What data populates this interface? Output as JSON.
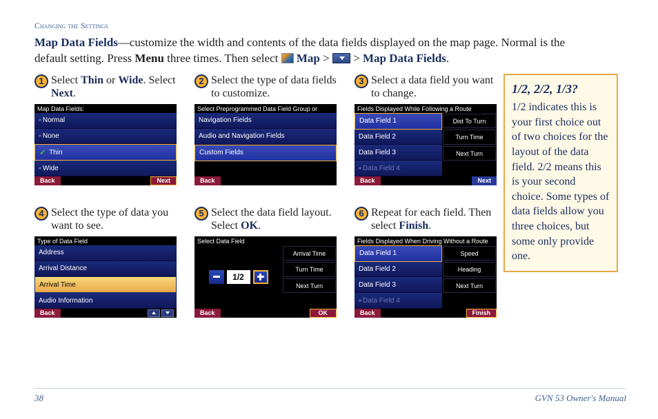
{
  "header_small": "Changing the Settings",
  "intro": {
    "lead_bold": "Map Data Fields",
    "line1_rest": "—customize the width and contents of the data fields displayed on the map page. Normal is the",
    "line2_a": "default setting. Press ",
    "menu_bold": "Menu",
    "line2_b": " three times. Then select ",
    "map_bold": " Map",
    "gt1": " > ",
    "gt2": " > ",
    "mdf_bold": "Map Data Fields",
    "period": "."
  },
  "steps": {
    "s1": {
      "num": "1",
      "a": "Select ",
      "b": "Thin",
      "c": " or ",
      "d": "Wide",
      "e": ". Select ",
      "f": "Next",
      "g": "."
    },
    "s2": {
      "num": "2",
      "text": "Select the type of data fields to customize."
    },
    "s3": {
      "num": "3",
      "text": "Select a data field you want to change."
    },
    "s4": {
      "num": "4",
      "text": "Select the type of data you want to see."
    },
    "s5": {
      "num": "5",
      "a": "Select the data field layout. Select ",
      "b": "OK",
      "c": "."
    },
    "s6": {
      "num": "6",
      "a": "Repeat for each field. Then select ",
      "b": "Finish",
      "c": "."
    }
  },
  "screen1": {
    "title": "Map Data Fields:",
    "rows": [
      "Normal",
      "None",
      "Thin",
      "Wide"
    ],
    "checked_index": 2,
    "back": "Back",
    "next": "Next"
  },
  "screen2": {
    "title": "Select Preprogrammed Data Field Group or Custom",
    "rows": [
      "Navigation Fields",
      "Audio and Navigation Fields",
      "Custom Fields"
    ],
    "sel_index": 2,
    "back": "Back"
  },
  "screen3": {
    "title": "Fields Displayed While Following a Route",
    "left": [
      "Data Field 1",
      "Data Field 2",
      "Data Field 3",
      "Data Field 4"
    ],
    "right": [
      "Dist To Turn",
      "Turn Time",
      "Next Turn",
      ""
    ],
    "sel_index": 0,
    "back": "Back",
    "next": "Next"
  },
  "screen4": {
    "title": "Type of Data Field",
    "rows": [
      "Address",
      "Arrival Distance",
      "Arrival Time",
      "Audio Information"
    ],
    "high_index": 2,
    "back": "Back"
  },
  "screen5": {
    "title": "Select Data Field",
    "counter": "1/2",
    "right": [
      "Arrival Time",
      "Turn Time",
      "Next Turn"
    ],
    "back": "Back",
    "ok": "OK"
  },
  "screen6": {
    "title": "Fields Displayed When Driving Without a Route",
    "left": [
      "Data Field 1",
      "Data Field 2",
      "Data Field 3",
      "Data Field 4"
    ],
    "right": [
      "Speed",
      "Heading",
      "Next Turn",
      ""
    ],
    "sel_index": 0,
    "back": "Back",
    "finish": "Finish"
  },
  "side": {
    "title": "1/2, 2/2, 1/3?",
    "body": "1/2 indicates this is your first choice out of two choices for the layout of the data field. 2/2 means this is your second choice. Some types of data fields allow you three choices, but some only provide one."
  },
  "footer": {
    "page": "38",
    "title": "GVN 53 Owner's Manual"
  }
}
